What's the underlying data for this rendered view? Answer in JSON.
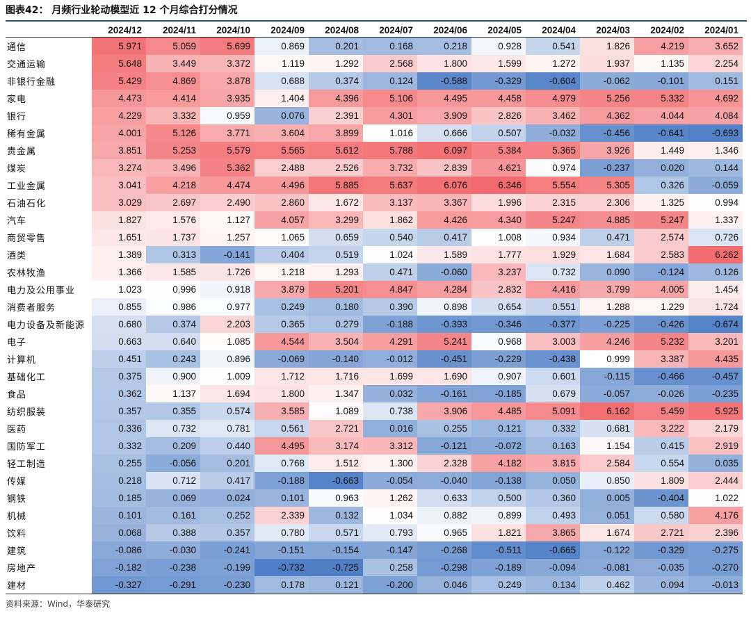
{
  "title": "图表42：  月频行业轮动模型近 12 个月综合打分情况",
  "source": "资料来源：Wind，华泰研究",
  "chart_data": {
    "type": "heatmap",
    "columns": [
      "2024/12",
      "2024/11",
      "2024/10",
      "2024/09",
      "2024/08",
      "2024/07",
      "2024/06",
      "2024/05",
      "2024/04",
      "2024/03",
      "2024/02",
      "2024/01"
    ],
    "rows": [
      {
        "label": "通信",
        "values": [
          5.971,
          5.059,
          5.699,
          0.869,
          0.201,
          0.168,
          0.218,
          0.928,
          0.541,
          1.826,
          4.219,
          3.652
        ]
      },
      {
        "label": "交通运输",
        "values": [
          5.648,
          3.449,
          3.372,
          1.119,
          1.292,
          2.568,
          1.8,
          1.599,
          1.272,
          1.937,
          1.135,
          2.254
        ]
      },
      {
        "label": "非银行金融",
        "values": [
          5.429,
          4.869,
          3.878,
          0.688,
          0.374,
          0.124,
          -0.588,
          -0.329,
          -0.604,
          -0.062,
          -0.101,
          0.151
        ]
      },
      {
        "label": "家电",
        "values": [
          4.473,
          4.414,
          3.935,
          1.404,
          4.396,
          5.106,
          4.495,
          4.458,
          4.979,
          5.256,
          5.332,
          4.692
        ]
      },
      {
        "label": "银行",
        "values": [
          4.229,
          3.332,
          0.959,
          0.076,
          2.391,
          4.301,
          3.909,
          2.826,
          3.462,
          4.362,
          4.044,
          4.084
        ]
      },
      {
        "label": "稀有金属",
        "values": [
          4.001,
          5.126,
          3.771,
          3.604,
          3.899,
          1.016,
          0.666,
          0.507,
          -0.032,
          -0.456,
          -0.641,
          -0.693
        ]
      },
      {
        "label": "贵金属",
        "values": [
          3.851,
          5.253,
          5.579,
          5.565,
          5.612,
          5.788,
          6.097,
          5.384,
          5.365,
          3.926,
          1.449,
          1.346
        ]
      },
      {
        "label": "煤炭",
        "values": [
          3.274,
          3.496,
          5.362,
          2.488,
          2.526,
          3.732,
          2.839,
          4.621,
          0.974,
          -0.237,
          0.02,
          0.144
        ]
      },
      {
        "label": "工业金属",
        "values": [
          3.041,
          4.218,
          4.474,
          4.496,
          5.885,
          5.637,
          6.076,
          6.346,
          5.554,
          5.305,
          0.326,
          -0.059
        ]
      },
      {
        "label": "石油石化",
        "values": [
          3.029,
          2.697,
          2.49,
          2.86,
          1.672,
          3.137,
          3.367,
          1.996,
          2.315,
          2.306,
          1.325,
          0.994
        ]
      },
      {
        "label": "汽车",
        "values": [
          1.827,
          1.576,
          1.127,
          4.057,
          3.299,
          1.862,
          4.426,
          4.34,
          5.247,
          4.885,
          5.247,
          1.337
        ]
      },
      {
        "label": "商贸零售",
        "values": [
          1.651,
          1.737,
          1.257,
          1.065,
          0.659,
          0.54,
          0.417,
          1.008,
          0.934,
          0.471,
          2.574,
          0.726
        ]
      },
      {
        "label": "酒类",
        "values": [
          1.389,
          0.313,
          -0.141,
          0.404,
          0.519,
          1.024,
          1.589,
          1.777,
          1.929,
          1.684,
          2.583,
          6.262
        ]
      },
      {
        "label": "农林牧渔",
        "values": [
          1.366,
          1.585,
          1.726,
          1.218,
          1.293,
          0.471,
          -0.06,
          3.237,
          0.732,
          0.09,
          -0.124,
          0.126
        ]
      },
      {
        "label": "电力及公用事业",
        "values": [
          1.023,
          0.996,
          0.918,
          3.879,
          5.201,
          4.847,
          4.284,
          2.832,
          4.416,
          3.799,
          4.005,
          1.454
        ]
      },
      {
        "label": "消费者服务",
        "values": [
          0.855,
          0.986,
          0.977,
          0.249,
          0.18,
          0.39,
          0.898,
          0.654,
          0.551,
          1.288,
          1.229,
          1.724
        ]
      },
      {
        "label": "电力设备及新能源",
        "values": [
          0.68,
          0.374,
          2.203,
          0.365,
          0.279,
          -0.188,
          -0.393,
          -0.346,
          -0.377,
          -0.225,
          -0.426,
          -0.674
        ]
      },
      {
        "label": "电子",
        "values": [
          0.663,
          0.64,
          1.085,
          4.544,
          3.504,
          4.291,
          5.241,
          0.968,
          3.003,
          4.246,
          5.232,
          3.201
        ]
      },
      {
        "label": "计算机",
        "values": [
          0.451,
          0.243,
          0.896,
          -0.069,
          -0.14,
          -0.012,
          -0.451,
          -0.229,
          -0.438,
          0.999,
          3.387,
          4.435
        ]
      },
      {
        "label": "基础化工",
        "values": [
          0.375,
          0.9,
          1.009,
          1.712,
          1.716,
          1.699,
          1.69,
          0.907,
          0.601,
          -0.115,
          -0.466,
          -0.457
        ]
      },
      {
        "label": "食品",
        "values": [
          0.362,
          1.137,
          1.694,
          1.8,
          1.347,
          0.032,
          -0.161,
          -0.185,
          0.679,
          -0.057,
          -0.026,
          -0.235
        ]
      },
      {
        "label": "纺织服装",
        "values": [
          0.357,
          0.355,
          0.574,
          3.585,
          1.089,
          0.738,
          3.906,
          4.485,
          5.091,
          6.162,
          5.459,
          5.925
        ]
      },
      {
        "label": "医药",
        "values": [
          0.336,
          0.732,
          0.781,
          0.561,
          2.721,
          0.016,
          0.255,
          0.121,
          0.332,
          0.681,
          3.222,
          2.179
        ]
      },
      {
        "label": "国防军工",
        "values": [
          0.332,
          0.209,
          0.44,
          4.495,
          3.174,
          3.312,
          -0.121,
          -0.072,
          0.163,
          1.154,
          0.415,
          2.919
        ]
      },
      {
        "label": "轻工制造",
        "values": [
          0.255,
          -0.056,
          0.201,
          0.768,
          1.512,
          1.3,
          2.328,
          4.182,
          3.815,
          2.584,
          0.554,
          0.035
        ]
      },
      {
        "label": "传媒",
        "values": [
          0.218,
          0.712,
          0.417,
          -0.188,
          -0.663,
          -0.054,
          -0.04,
          -0.138,
          0.05,
          0.85,
          1.809,
          2.444
        ]
      },
      {
        "label": "钢铁",
        "values": [
          0.185,
          0.069,
          0.024,
          0.101,
          0.963,
          1.262,
          0.633,
          0.5,
          0.36,
          0.005,
          -0.404,
          1.022
        ]
      },
      {
        "label": "机械",
        "values": [
          0.101,
          0.161,
          0.252,
          2.339,
          0.132,
          1.034,
          0.882,
          0.899,
          0.493,
          0.051,
          0.58,
          4.176
        ]
      },
      {
        "label": "饮料",
        "values": [
          0.068,
          0.388,
          0.357,
          0.78,
          0.571,
          0.793,
          0.965,
          1.821,
          3.865,
          1.674,
          2.721,
          2.396
        ]
      },
      {
        "label": "建筑",
        "values": [
          -0.086,
          -0.03,
          -0.241,
          -0.151,
          -0.154,
          -0.147,
          -0.268,
          -0.511,
          -0.665,
          -0.122,
          -0.329,
          -0.275
        ]
      },
      {
        "label": "房地产",
        "values": [
          -0.182,
          -0.238,
          -0.199,
          -0.732,
          -0.725,
          0.258,
          -0.298,
          -0.189,
          -0.094,
          -0.081,
          -0.035,
          -0.27
        ]
      },
      {
        "label": "建材",
        "values": [
          -0.327,
          -0.291,
          -0.23,
          0.178,
          0.121,
          -0.2,
          0.046,
          0.249,
          0.134,
          0.462,
          0.094,
          -0.013
        ]
      }
    ],
    "color_scale": {
      "low": "#4f7fc6",
      "mid": "#ffffff",
      "high": "#f26b6e"
    }
  }
}
